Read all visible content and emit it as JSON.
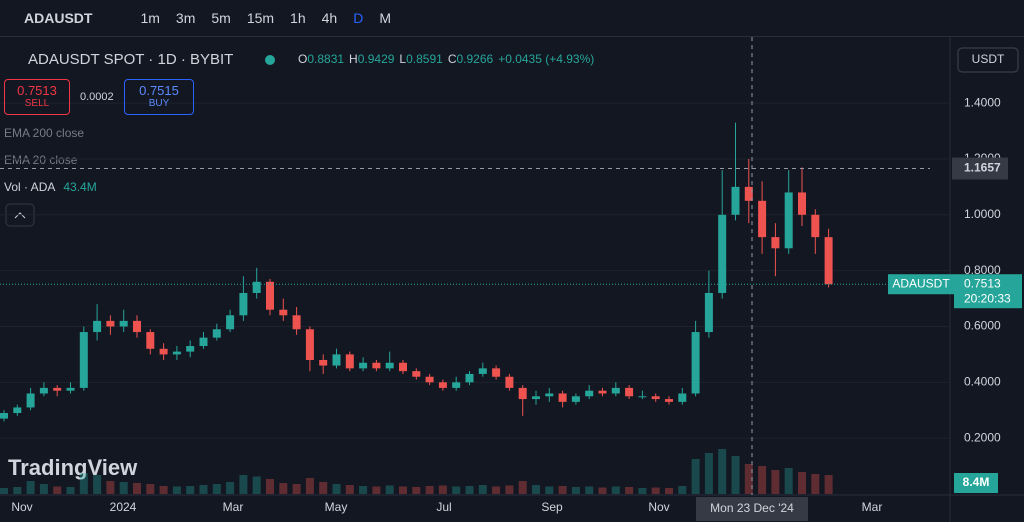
{
  "toolbar": {
    "symbol": "ADAUSDT",
    "intervals": [
      "1m",
      "3m",
      "5m",
      "15m",
      "1h",
      "4h",
      "D",
      "M"
    ]
  },
  "legend": {
    "title": "ADAUSDT SPOT · 1D · BYBIT",
    "o_label": "O",
    "o": "0.8831",
    "h_label": "H",
    "h": "0.9429",
    "l_label": "L",
    "l": "0.8591",
    "c_label": "C",
    "c": "0.9266",
    "change": "+0.0435 (+4.93%)",
    "sell_price": "0.7513",
    "sell": "SELL",
    "spread": "0.0002",
    "buy_price": "0.7515",
    "buy": "BUY",
    "ema200": "EMA 200 close",
    "ema20": "EMA 20 close",
    "vol": "Vol · ADA",
    "vol_value": "43.4M"
  },
  "logo": "TradingView",
  "chart_data": {
    "type": "candlestick",
    "up_color": "#26a69a",
    "down_color": "#ef5350",
    "currency": "USDT",
    "ylim": [
      0,
      1.626
    ],
    "yticks": [
      {
        "value": 1.4,
        "label": "1.4000"
      },
      {
        "value": 1.2,
        "label": "1.2000"
      },
      {
        "value": 1.0,
        "label": "1.0000"
      },
      {
        "value": 0.8,
        "label": "0.8000"
      },
      {
        "value": 0.6,
        "label": "0.6000"
      },
      {
        "value": 0.4,
        "label": "0.4000"
      },
      {
        "value": 0.2,
        "label": "0.2000"
      }
    ],
    "time_labels": [
      "Nov",
      "2024",
      "Mar",
      "May",
      "Jul",
      "Sep",
      "Nov",
      "Mar"
    ],
    "crosshair": {
      "price": {
        "value": 1.1657,
        "label": "1.1657"
      },
      "date": "Mon 23 Dec '24"
    },
    "last": {
      "symbol": "ADAUSDT",
      "price": {
        "value": 0.7513,
        "label": "0.7513"
      },
      "countdown": "20:20:33"
    },
    "volume_label": "8.4M",
    "candles": [
      [
        0.27,
        0.3,
        0.26,
        0.29
      ],
      [
        0.29,
        0.32,
        0.28,
        0.31
      ],
      [
        0.31,
        0.38,
        0.3,
        0.36
      ],
      [
        0.36,
        0.4,
        0.35,
        0.38
      ],
      [
        0.38,
        0.39,
        0.35,
        0.37
      ],
      [
        0.37,
        0.4,
        0.36,
        0.38
      ],
      [
        0.38,
        0.6,
        0.37,
        0.58
      ],
      [
        0.58,
        0.68,
        0.55,
        0.62
      ],
      [
        0.62,
        0.64,
        0.57,
        0.6
      ],
      [
        0.6,
        0.66,
        0.58,
        0.62
      ],
      [
        0.62,
        0.64,
        0.56,
        0.58
      ],
      [
        0.58,
        0.59,
        0.5,
        0.52
      ],
      [
        0.52,
        0.54,
        0.48,
        0.5
      ],
      [
        0.5,
        0.53,
        0.48,
        0.51
      ],
      [
        0.51,
        0.55,
        0.49,
        0.53
      ],
      [
        0.53,
        0.58,
        0.52,
        0.56
      ],
      [
        0.56,
        0.61,
        0.55,
        0.59
      ],
      [
        0.59,
        0.66,
        0.58,
        0.64
      ],
      [
        0.64,
        0.78,
        0.62,
        0.72
      ],
      [
        0.72,
        0.81,
        0.7,
        0.76
      ],
      [
        0.76,
        0.77,
        0.64,
        0.66
      ],
      [
        0.66,
        0.7,
        0.62,
        0.64
      ],
      [
        0.64,
        0.67,
        0.57,
        0.59
      ],
      [
        0.59,
        0.6,
        0.44,
        0.48
      ],
      [
        0.48,
        0.5,
        0.43,
        0.46
      ],
      [
        0.46,
        0.52,
        0.45,
        0.5
      ],
      [
        0.5,
        0.51,
        0.44,
        0.45
      ],
      [
        0.45,
        0.49,
        0.44,
        0.47
      ],
      [
        0.47,
        0.48,
        0.44,
        0.45
      ],
      [
        0.45,
        0.51,
        0.44,
        0.47
      ],
      [
        0.47,
        0.48,
        0.43,
        0.44
      ],
      [
        0.44,
        0.45,
        0.41,
        0.42
      ],
      [
        0.42,
        0.43,
        0.39,
        0.4
      ],
      [
        0.4,
        0.41,
        0.37,
        0.38
      ],
      [
        0.38,
        0.42,
        0.37,
        0.4
      ],
      [
        0.4,
        0.44,
        0.39,
        0.43
      ],
      [
        0.43,
        0.47,
        0.42,
        0.45
      ],
      [
        0.45,
        0.46,
        0.41,
        0.42
      ],
      [
        0.42,
        0.43,
        0.37,
        0.38
      ],
      [
        0.38,
        0.39,
        0.28,
        0.34
      ],
      [
        0.34,
        0.37,
        0.32,
        0.35
      ],
      [
        0.35,
        0.38,
        0.33,
        0.36
      ],
      [
        0.36,
        0.37,
        0.31,
        0.33
      ],
      [
        0.33,
        0.36,
        0.32,
        0.35
      ],
      [
        0.35,
        0.39,
        0.34,
        0.37
      ],
      [
        0.37,
        0.38,
        0.35,
        0.36
      ],
      [
        0.36,
        0.4,
        0.35,
        0.38
      ],
      [
        0.38,
        0.39,
        0.34,
        0.35
      ],
      [
        0.35,
        0.37,
        0.34,
        0.35
      ],
      [
        0.35,
        0.36,
        0.33,
        0.34
      ],
      [
        0.34,
        0.35,
        0.32,
        0.33
      ],
      [
        0.33,
        0.38,
        0.32,
        0.36
      ],
      [
        0.36,
        0.62,
        0.35,
        0.58
      ],
      [
        0.58,
        0.8,
        0.56,
        0.72
      ],
      [
        0.72,
        1.16,
        0.7,
        1.0
      ],
      [
        1.0,
        1.33,
        0.98,
        1.1
      ],
      [
        1.1,
        1.2,
        0.97,
        1.05
      ],
      [
        1.05,
        1.12,
        0.86,
        0.92
      ],
      [
        0.92,
        0.97,
        0.78,
        0.88
      ],
      [
        0.88,
        1.16,
        0.86,
        1.08
      ],
      [
        1.08,
        1.17,
        0.96,
        1.0
      ],
      [
        1.0,
        1.02,
        0.86,
        0.92
      ],
      [
        0.92,
        0.95,
        0.74,
        0.7513
      ]
    ],
    "volume": [
      120,
      140,
      260,
      200,
      150,
      140,
      420,
      380,
      260,
      240,
      220,
      200,
      160,
      150,
      160,
      180,
      200,
      240,
      380,
      350,
      300,
      220,
      200,
      320,
      240,
      200,
      180,
      160,
      150,
      170,
      150,
      140,
      160,
      170,
      150,
      160,
      180,
      150,
      170,
      260,
      180,
      150,
      160,
      140,
      150,
      130,
      150,
      140,
      120,
      130,
      120,
      160,
      700,
      820,
      900,
      760,
      600,
      560,
      480,
      520,
      440,
      400,
      380
    ]
  }
}
